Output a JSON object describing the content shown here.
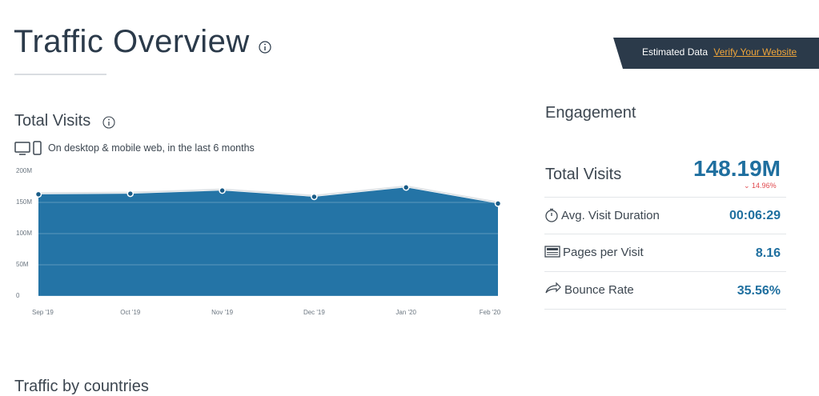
{
  "header": {
    "title": "Traffic Overview",
    "badge": "Estimated Data",
    "link": "Verify Your Website"
  },
  "total_visits": {
    "title": "Total Visits",
    "subtitle": "On desktop & mobile web, in the last 6 months"
  },
  "chart_data": {
    "type": "area",
    "x": [
      "Sep '19",
      "Oct '19",
      "Nov '19",
      "Dec '19",
      "Jan '20",
      "Feb '20"
    ],
    "values": [
      163,
      164,
      169,
      159,
      174,
      148.19
    ],
    "color": "#2474a6",
    "ylim": [
      0,
      200
    ],
    "yticks": [
      0,
      {
        "value": 50,
        "label": "50M"
      },
      {
        "value": 100,
        "label": "100M"
      },
      {
        "value": 150,
        "label": "150M"
      },
      {
        "value": 200,
        "label": "200M"
      }
    ],
    "grid": true
  },
  "engagement": {
    "title": "Engagement",
    "rows": [
      {
        "label": "Total Visits",
        "value": "148.19M",
        "change": "14.96%"
      },
      {
        "label": "Avg. Visit Duration",
        "value": "00:06:29"
      },
      {
        "label": "Pages per Visit",
        "value": "8.16"
      },
      {
        "label": "Bounce Rate",
        "value": "35.56%"
      }
    ]
  },
  "footer": {
    "title": "Traffic by countries"
  }
}
